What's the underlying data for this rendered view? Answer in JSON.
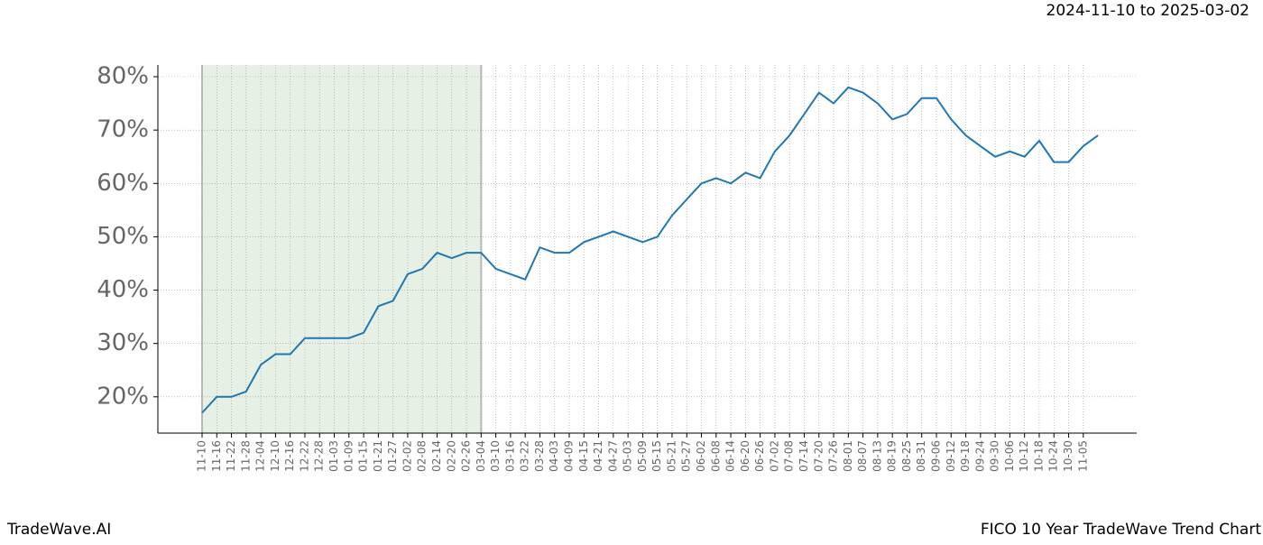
{
  "chart_data": {
    "type": "line",
    "date_range": "2024-11-10 to 2025-03-02",
    "brand": "TradeWave.AI",
    "title": "FICO 10 Year TradeWave Trend Chart",
    "highlight": [
      "11-10",
      "03-04"
    ],
    "categories": [
      "11-10",
      "11-16",
      "11-22",
      "11-28",
      "12-04",
      "12-10",
      "12-16",
      "12-22",
      "12-28",
      "01-03",
      "01-09",
      "01-15",
      "01-21",
      "01-27",
      "02-02",
      "02-08",
      "02-14",
      "02-20",
      "02-26",
      "03-04",
      "03-10",
      "03-16",
      "03-22",
      "03-28",
      "04-03",
      "04-09",
      "04-15",
      "04-21",
      "04-27",
      "05-03",
      "05-09",
      "05-15",
      "05-21",
      "05-27",
      "06-02",
      "06-08",
      "06-14",
      "06-20",
      "06-26",
      "07-02",
      "07-08",
      "07-14",
      "07-20",
      "07-26",
      "08-01",
      "08-07",
      "08-13",
      "08-19",
      "08-25",
      "08-31",
      "09-06",
      "09-12",
      "09-18",
      "09-24",
      "09-30",
      "10-06",
      "10-12",
      "10-18",
      "10-24",
      "10-30",
      "11-05",
      null
    ],
    "series": [
      {
        "color": "#1f77b4",
        "values": [
          17,
          20,
          20,
          21,
          26,
          28,
          28,
          31,
          31,
          31,
          31,
          32,
          37,
          38,
          43,
          44,
          47,
          46,
          47,
          47,
          44,
          43,
          42,
          48,
          47,
          47,
          49,
          50,
          51,
          50,
          49,
          50,
          54,
          57,
          60,
          61,
          60,
          62,
          61,
          66,
          69,
          73,
          77,
          75,
          78,
          77,
          75,
          72,
          73,
          76,
          76,
          72,
          69,
          67,
          65,
          66,
          65,
          68,
          64,
          64,
          67,
          69
        ]
      }
    ],
    "ylim": [
      13.2,
      82.2
    ],
    "yticks": [
      {
        "value": 20,
        "label": "20%"
      },
      {
        "value": 30,
        "label": "30%"
      },
      {
        "value": 40,
        "label": "40%"
      },
      {
        "value": 50,
        "label": "50%"
      },
      {
        "value": 60,
        "label": "60%"
      },
      {
        "value": 70,
        "label": "70%"
      },
      {
        "value": 80,
        "label": "80%"
      }
    ],
    "grid": true
  }
}
